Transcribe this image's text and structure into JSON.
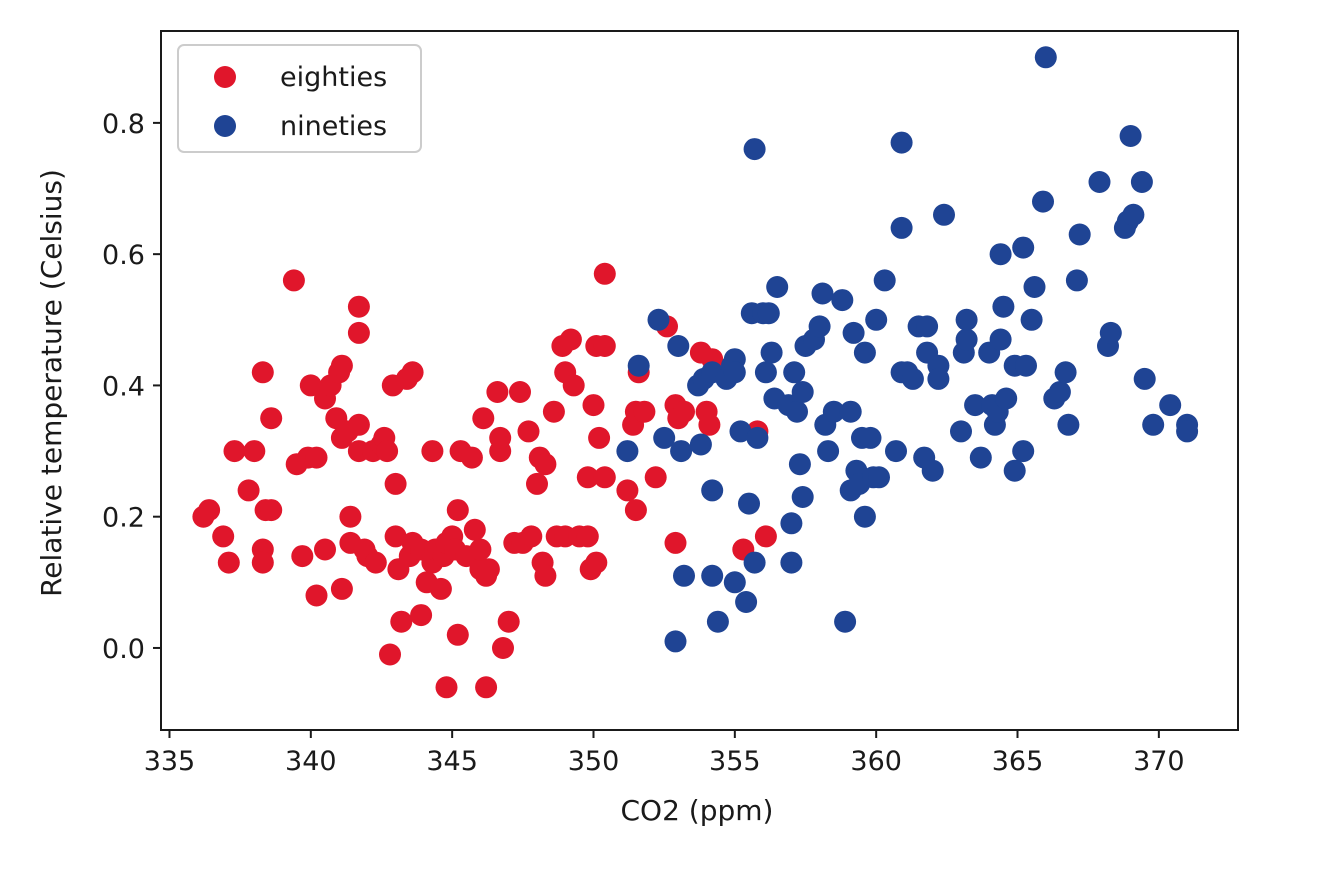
{
  "chart_data": {
    "type": "scatter",
    "xlabel": "CO2 (ppm)",
    "ylabel": "Relative temperature (Celsius)",
    "xlim": [
      334.7,
      372.8
    ],
    "ylim": [
      -0.125,
      0.94
    ],
    "xticks": [
      335,
      340,
      345,
      350,
      355,
      360,
      365,
      370
    ],
    "yticks": [
      0.0,
      0.2,
      0.4,
      0.6,
      0.8
    ],
    "ytick_labels": [
      "0.0",
      "0.2",
      "0.4",
      "0.6",
      "0.8"
    ],
    "grid": false,
    "legend": "upper-left",
    "series": [
      {
        "name": "eighties",
        "color": "#e0162b",
        "points": [
          [
            336.2,
            0.2
          ],
          [
            336.4,
            0.21
          ],
          [
            336.9,
            0.17
          ],
          [
            337.1,
            0.13
          ],
          [
            337.3,
            0.3
          ],
          [
            337.8,
            0.24
          ],
          [
            338.0,
            0.3
          ],
          [
            338.3,
            0.42
          ],
          [
            338.3,
            0.15
          ],
          [
            338.3,
            0.13
          ],
          [
            338.4,
            0.21
          ],
          [
            338.6,
            0.21
          ],
          [
            338.6,
            0.35
          ],
          [
            339.4,
            0.56
          ],
          [
            339.5,
            0.28
          ],
          [
            339.7,
            0.14
          ],
          [
            339.9,
            0.29
          ],
          [
            340.0,
            0.4
          ],
          [
            340.2,
            0.29
          ],
          [
            340.2,
            0.08
          ],
          [
            340.5,
            0.15
          ],
          [
            340.5,
            0.38
          ],
          [
            340.7,
            0.4
          ],
          [
            340.9,
            0.35
          ],
          [
            341.0,
            0.42
          ],
          [
            341.1,
            0.43
          ],
          [
            341.1,
            0.32
          ],
          [
            341.1,
            0.09
          ],
          [
            341.3,
            0.33
          ],
          [
            341.4,
            0.2
          ],
          [
            341.4,
            0.16
          ],
          [
            341.7,
            0.34
          ],
          [
            341.7,
            0.52
          ],
          [
            341.7,
            0.48
          ],
          [
            341.7,
            0.3
          ],
          [
            341.9,
            0.15
          ],
          [
            342.0,
            0.14
          ],
          [
            342.2,
            0.3
          ],
          [
            342.3,
            0.13
          ],
          [
            342.5,
            0.31
          ],
          [
            342.6,
            0.32
          ],
          [
            342.7,
            0.3
          ],
          [
            342.8,
            -0.01
          ],
          [
            342.9,
            0.4
          ],
          [
            343.0,
            0.25
          ],
          [
            343.0,
            0.17
          ],
          [
            343.1,
            0.12
          ],
          [
            343.2,
            0.04
          ],
          [
            343.4,
            0.41
          ],
          [
            343.6,
            0.42
          ],
          [
            343.5,
            0.14
          ],
          [
            343.6,
            0.16
          ],
          [
            343.9,
            0.15
          ],
          [
            343.9,
            0.05
          ],
          [
            344.1,
            0.1
          ],
          [
            344.3,
            0.13
          ],
          [
            344.3,
            0.3
          ],
          [
            344.4,
            0.15
          ],
          [
            344.5,
            0.15
          ],
          [
            344.6,
            0.09
          ],
          [
            344.7,
            0.14
          ],
          [
            344.8,
            0.16
          ],
          [
            344.8,
            -0.06
          ],
          [
            345.0,
            0.17
          ],
          [
            345.1,
            0.15
          ],
          [
            345.2,
            0.21
          ],
          [
            345.2,
            0.02
          ],
          [
            345.3,
            0.3
          ],
          [
            345.5,
            0.14
          ],
          [
            345.7,
            0.29
          ],
          [
            345.8,
            0.18
          ],
          [
            346.0,
            0.12
          ],
          [
            346.0,
            0.15
          ],
          [
            346.1,
            0.35
          ],
          [
            346.2,
            0.11
          ],
          [
            346.2,
            -0.06
          ],
          [
            346.3,
            0.12
          ],
          [
            346.6,
            0.39
          ],
          [
            346.7,
            0.3
          ],
          [
            346.7,
            0.32
          ],
          [
            346.8,
            0.0
          ],
          [
            347.0,
            0.04
          ],
          [
            347.2,
            0.16
          ],
          [
            347.4,
            0.39
          ],
          [
            347.5,
            0.16
          ],
          [
            347.7,
            0.33
          ],
          [
            347.8,
            0.17
          ],
          [
            348.0,
            0.25
          ],
          [
            348.1,
            0.29
          ],
          [
            348.2,
            0.13
          ],
          [
            348.3,
            0.28
          ],
          [
            348.3,
            0.11
          ],
          [
            348.6,
            0.36
          ],
          [
            348.7,
            0.17
          ],
          [
            348.9,
            0.46
          ],
          [
            349.0,
            0.42
          ],
          [
            349.0,
            0.17
          ],
          [
            349.2,
            0.47
          ],
          [
            349.3,
            0.4
          ],
          [
            349.5,
            0.17
          ],
          [
            349.8,
            0.17
          ],
          [
            349.8,
            0.26
          ],
          [
            349.9,
            0.12
          ],
          [
            350.0,
            0.37
          ],
          [
            350.1,
            0.13
          ],
          [
            350.1,
            0.46
          ],
          [
            350.2,
            0.32
          ],
          [
            350.4,
            0.46
          ],
          [
            350.4,
            0.57
          ],
          [
            350.4,
            0.26
          ],
          [
            351.2,
            0.24
          ],
          [
            351.4,
            0.34
          ],
          [
            351.5,
            0.21
          ],
          [
            351.5,
            0.36
          ],
          [
            351.6,
            0.42
          ],
          [
            351.8,
            0.36
          ],
          [
            352.2,
            0.26
          ],
          [
            352.6,
            0.49
          ],
          [
            352.9,
            0.37
          ],
          [
            352.9,
            0.16
          ],
          [
            353.0,
            0.35
          ],
          [
            353.2,
            0.36
          ],
          [
            353.8,
            0.45
          ],
          [
            354.0,
            0.36
          ],
          [
            354.1,
            0.34
          ],
          [
            354.2,
            0.44
          ],
          [
            355.3,
            0.15
          ],
          [
            355.8,
            0.33
          ],
          [
            356.1,
            0.17
          ]
        ]
      },
      {
        "name": "nineties",
        "color": "#1f4494",
        "points": [
          [
            351.2,
            0.3
          ],
          [
            351.6,
            0.43
          ],
          [
            352.3,
            0.5
          ],
          [
            352.5,
            0.32
          ],
          [
            352.9,
            0.01
          ],
          [
            353.0,
            0.46
          ],
          [
            353.1,
            0.3
          ],
          [
            353.2,
            0.11
          ],
          [
            353.7,
            0.4
          ],
          [
            353.8,
            0.31
          ],
          [
            353.9,
            0.41
          ],
          [
            354.2,
            0.42
          ],
          [
            354.2,
            0.24
          ],
          [
            354.2,
            0.11
          ],
          [
            354.4,
            0.04
          ],
          [
            354.7,
            0.41
          ],
          [
            354.9,
            0.43
          ],
          [
            355.0,
            0.44
          ],
          [
            355.0,
            0.42
          ],
          [
            355.0,
            0.1
          ],
          [
            355.2,
            0.33
          ],
          [
            355.4,
            0.07
          ],
          [
            355.5,
            0.22
          ],
          [
            355.6,
            0.51
          ],
          [
            355.7,
            0.76
          ],
          [
            355.7,
            0.13
          ],
          [
            355.8,
            0.32
          ],
          [
            356.0,
            0.51
          ],
          [
            356.1,
            0.42
          ],
          [
            356.2,
            0.51
          ],
          [
            356.3,
            0.45
          ],
          [
            356.4,
            0.38
          ],
          [
            356.5,
            0.55
          ],
          [
            356.9,
            0.37
          ],
          [
            357.0,
            0.19
          ],
          [
            357.0,
            0.13
          ],
          [
            357.1,
            0.42
          ],
          [
            357.2,
            0.36
          ],
          [
            357.3,
            0.28
          ],
          [
            357.4,
            0.39
          ],
          [
            357.4,
            0.23
          ],
          [
            357.5,
            0.46
          ],
          [
            357.8,
            0.47
          ],
          [
            358.0,
            0.49
          ],
          [
            358.1,
            0.54
          ],
          [
            358.2,
            0.34
          ],
          [
            358.3,
            0.3
          ],
          [
            358.5,
            0.36
          ],
          [
            358.8,
            0.53
          ],
          [
            358.9,
            0.04
          ],
          [
            359.1,
            0.36
          ],
          [
            359.1,
            0.24
          ],
          [
            359.2,
            0.48
          ],
          [
            359.3,
            0.27
          ],
          [
            359.4,
            0.25
          ],
          [
            359.5,
            0.32
          ],
          [
            359.6,
            0.45
          ],
          [
            359.6,
            0.2
          ],
          [
            359.8,
            0.32
          ],
          [
            359.9,
            0.26
          ],
          [
            360.0,
            0.5
          ],
          [
            360.1,
            0.26
          ],
          [
            360.3,
            0.56
          ],
          [
            360.7,
            0.3
          ],
          [
            360.9,
            0.77
          ],
          [
            360.9,
            0.64
          ],
          [
            360.9,
            0.42
          ],
          [
            361.1,
            0.42
          ],
          [
            361.3,
            0.41
          ],
          [
            361.5,
            0.49
          ],
          [
            361.7,
            0.29
          ],
          [
            361.8,
            0.49
          ],
          [
            361.8,
            0.45
          ],
          [
            362.0,
            0.27
          ],
          [
            362.2,
            0.43
          ],
          [
            362.2,
            0.41
          ],
          [
            362.4,
            0.66
          ],
          [
            363.0,
            0.33
          ],
          [
            363.1,
            0.45
          ],
          [
            363.2,
            0.47
          ],
          [
            363.2,
            0.5
          ],
          [
            363.5,
            0.37
          ],
          [
            363.7,
            0.29
          ],
          [
            364.0,
            0.45
          ],
          [
            364.1,
            0.37
          ],
          [
            364.2,
            0.34
          ],
          [
            364.3,
            0.36
          ],
          [
            364.4,
            0.6
          ],
          [
            364.4,
            0.47
          ],
          [
            364.5,
            0.52
          ],
          [
            364.6,
            0.38
          ],
          [
            364.9,
            0.43
          ],
          [
            364.9,
            0.27
          ],
          [
            365.2,
            0.61
          ],
          [
            365.2,
            0.3
          ],
          [
            365.3,
            0.43
          ],
          [
            365.5,
            0.5
          ],
          [
            365.6,
            0.55
          ],
          [
            365.9,
            0.68
          ],
          [
            366.0,
            0.9
          ],
          [
            366.3,
            0.38
          ],
          [
            366.5,
            0.39
          ],
          [
            366.7,
            0.42
          ],
          [
            366.8,
            0.34
          ],
          [
            367.1,
            0.56
          ],
          [
            367.2,
            0.63
          ],
          [
            367.9,
            0.71
          ],
          [
            368.2,
            0.46
          ],
          [
            368.3,
            0.48
          ],
          [
            368.8,
            0.64
          ],
          [
            368.9,
            0.65
          ],
          [
            369.0,
            0.78
          ],
          [
            369.1,
            0.66
          ],
          [
            369.4,
            0.71
          ],
          [
            369.5,
            0.41
          ],
          [
            369.8,
            0.34
          ],
          [
            370.4,
            0.37
          ],
          [
            371.0,
            0.34
          ],
          [
            371.0,
            0.33
          ]
        ]
      }
    ]
  }
}
